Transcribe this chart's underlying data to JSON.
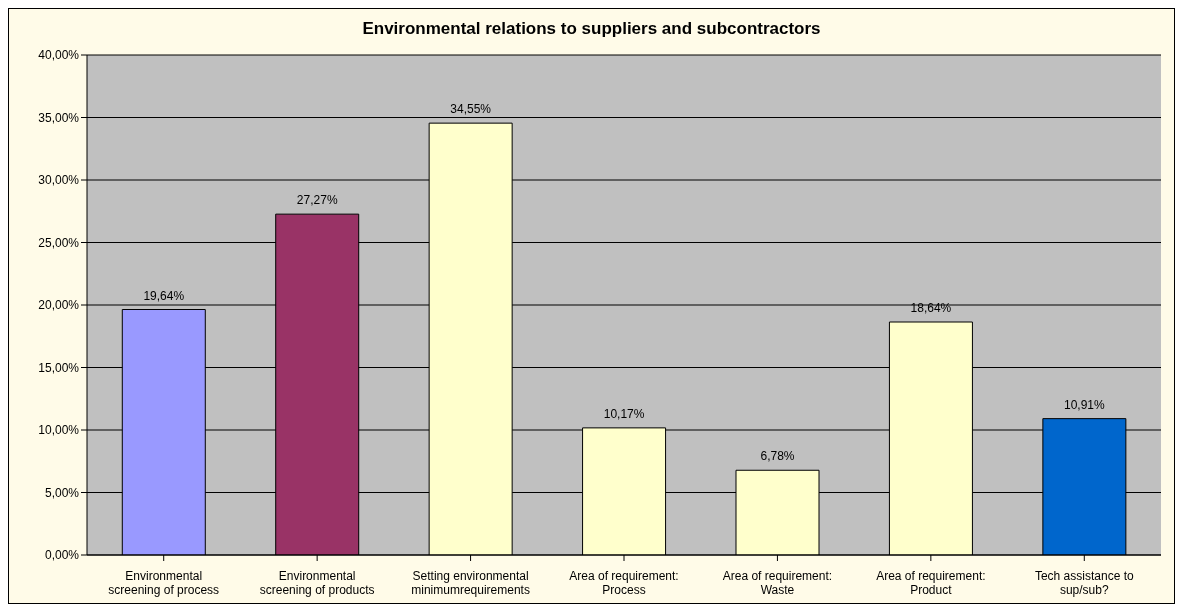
{
  "chart_data": {
    "type": "bar",
    "title": "Environmental relations to suppliers and subcontractors",
    "categories": [
      "Environmental\nscreening of process",
      "Environmental\nscreening of products",
      "Setting environmental\nminimumrequirements",
      "Area of requirement:\nProcess",
      "Area of requirement:\nWaste",
      "Area of requirement:\nProduct",
      "Tech assistance to\nsup/sub?"
    ],
    "values": [
      19.64,
      27.27,
      34.55,
      10.17,
      6.78,
      18.64,
      10.91
    ],
    "colors": [
      "#9999ff",
      "#993366",
      "#ffffcc",
      "#ffffcc",
      "#ffffcc",
      "#ffffcc",
      "#0066cc"
    ],
    "value_labels": [
      "19,64%",
      "27,27%",
      "34,55%",
      "10,17%",
      "6,78%",
      "18,64%",
      "10,91%"
    ],
    "ylim": [
      0,
      40
    ],
    "yticks": [
      {
        "value": 0,
        "label": "0,00%"
      },
      {
        "value": 5,
        "label": "5,00%"
      },
      {
        "value": 10,
        "label": "10,00%"
      },
      {
        "value": 15,
        "label": "15,00%"
      },
      {
        "value": 20,
        "label": "20,00%"
      },
      {
        "value": 25,
        "label": "25,00%"
      },
      {
        "value": 30,
        "label": "30,00%"
      },
      {
        "value": 35,
        "label": "35,00%"
      },
      {
        "value": 40,
        "label": "40,00%"
      }
    ],
    "grid": "y",
    "legend": false
  }
}
